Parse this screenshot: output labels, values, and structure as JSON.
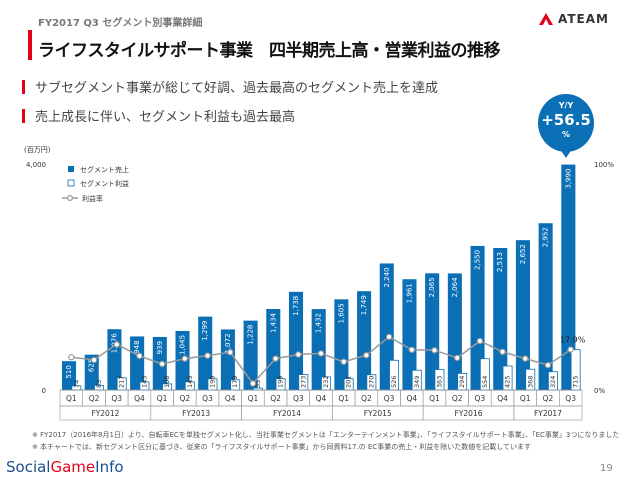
{
  "header": {
    "section": "FY2017 Q3 セグメント別事業詳細",
    "title": "ライフスタイルサポート事業　四半期売上高・営業利益の推移",
    "logo_text": "ATEAM"
  },
  "bullets": [
    "サブセグメント事業が総じて好調、過去最高のセグメント売上を達成",
    "売上成長に伴い、セグメント利益も過去最高"
  ],
  "yoy_badge": {
    "label": "Y/Y",
    "value": "+56.5",
    "unit": "%"
  },
  "chart_data": {
    "type": "bar",
    "unit_label": "(百万円)",
    "y_left_ticks": [
      "4,000",
      "0"
    ],
    "y_right_ticks": [
      "100%",
      "0%"
    ],
    "ylim": [
      0,
      4000
    ],
    "y2lim": [
      0,
      100
    ],
    "legend_position": "top-left",
    "categories": [
      "Q1",
      "Q2",
      "Q3",
      "Q4",
      "Q1",
      "Q2",
      "Q3",
      "Q4",
      "Q1",
      "Q2",
      "Q3",
      "Q4",
      "Q1",
      "Q2",
      "Q3",
      "Q4",
      "Q1",
      "Q2",
      "Q3",
      "Q4",
      "Q1",
      "Q2",
      "Q3"
    ],
    "groups": [
      {
        "label": "FY2012",
        "start": 0,
        "end": 3
      },
      {
        "label": "FY2013",
        "start": 4,
        "end": 7
      },
      {
        "label": "FY2014",
        "start": 8,
        "end": 11
      },
      {
        "label": "FY2015",
        "start": 12,
        "end": 15
      },
      {
        "label": "FY2016",
        "start": 16,
        "end": 19
      },
      {
        "label": "FY2017",
        "start": 20,
        "end": 22
      }
    ],
    "series": [
      {
        "name": "セグメント売上",
        "color": "#0b6fb5",
        "values": [
          510,
          625,
          1076,
          948,
          939,
          1045,
          1299,
          1072,
          1228,
          1434,
          1738,
          1432,
          1605,
          1749,
          2240,
          1961,
          2065,
          2064,
          2550,
          2513,
          2652,
          2952,
          3990
        ],
        "labels": [
          "510",
          "625",
          "1,076",
          "948",
          "939",
          "1,045",
          "1,299",
          "1,072",
          "1,228",
          "1,434",
          "1,738",
          "1,432",
          "1,605",
          "1,749",
          "2,240",
          "1,961",
          "2,065",
          "2,064",
          "2,550",
          "2,513",
          "2,652",
          "2,952",
          "3,990"
        ]
      },
      {
        "name": "セグメント利益",
        "color": "#ffffff",
        "values": [
          74,
          83,
          217,
          143,
          108,
          145,
          198,
          179,
          35,
          199,
          273,
          232,
          201,
          270,
          526,
          349,
          363,
          294,
          554,
          425,
          368,
          324,
          715
        ],
        "labels": [
          "74",
          "83",
          "217",
          "143",
          "108",
          "145",
          "198",
          "179",
          "35",
          "199",
          "273",
          "232",
          "201",
          "270",
          "526",
          "349",
          "363",
          "294",
          "554",
          "425",
          "368",
          "324",
          "715"
        ]
      },
      {
        "name": "利益率",
        "color": "#999999",
        "values": [
          14.5,
          13.3,
          20.2,
          15.1,
          11.5,
          13.9,
          15.2,
          16.7,
          2.9,
          13.9,
          15.7,
          16.2,
          12.5,
          15.4,
          23.5,
          17.8,
          17.6,
          14.2,
          21.7,
          16.9,
          13.9,
          11.0,
          17.9
        ]
      }
    ],
    "annotation": "17.9%"
  },
  "notes": [
    "※ FY2017（2016年8月1日）より、自転車ECを単独セグメント化し、当社事業セグメントは「エンターテインメント事業」、「ライフスタイルサポート事業」、「EC事業」3つになりました",
    "※ 本チャートでは、新セグメント区分に基づき、従来の「ライフスタイルサポート事業」から同資料17.の EC事業の売上・利益を除いた数値を記載しています"
  ],
  "footer": {
    "brand_left": "Social",
    "brand_mid": "Game",
    "brand_right": "Info",
    "page": "19"
  }
}
